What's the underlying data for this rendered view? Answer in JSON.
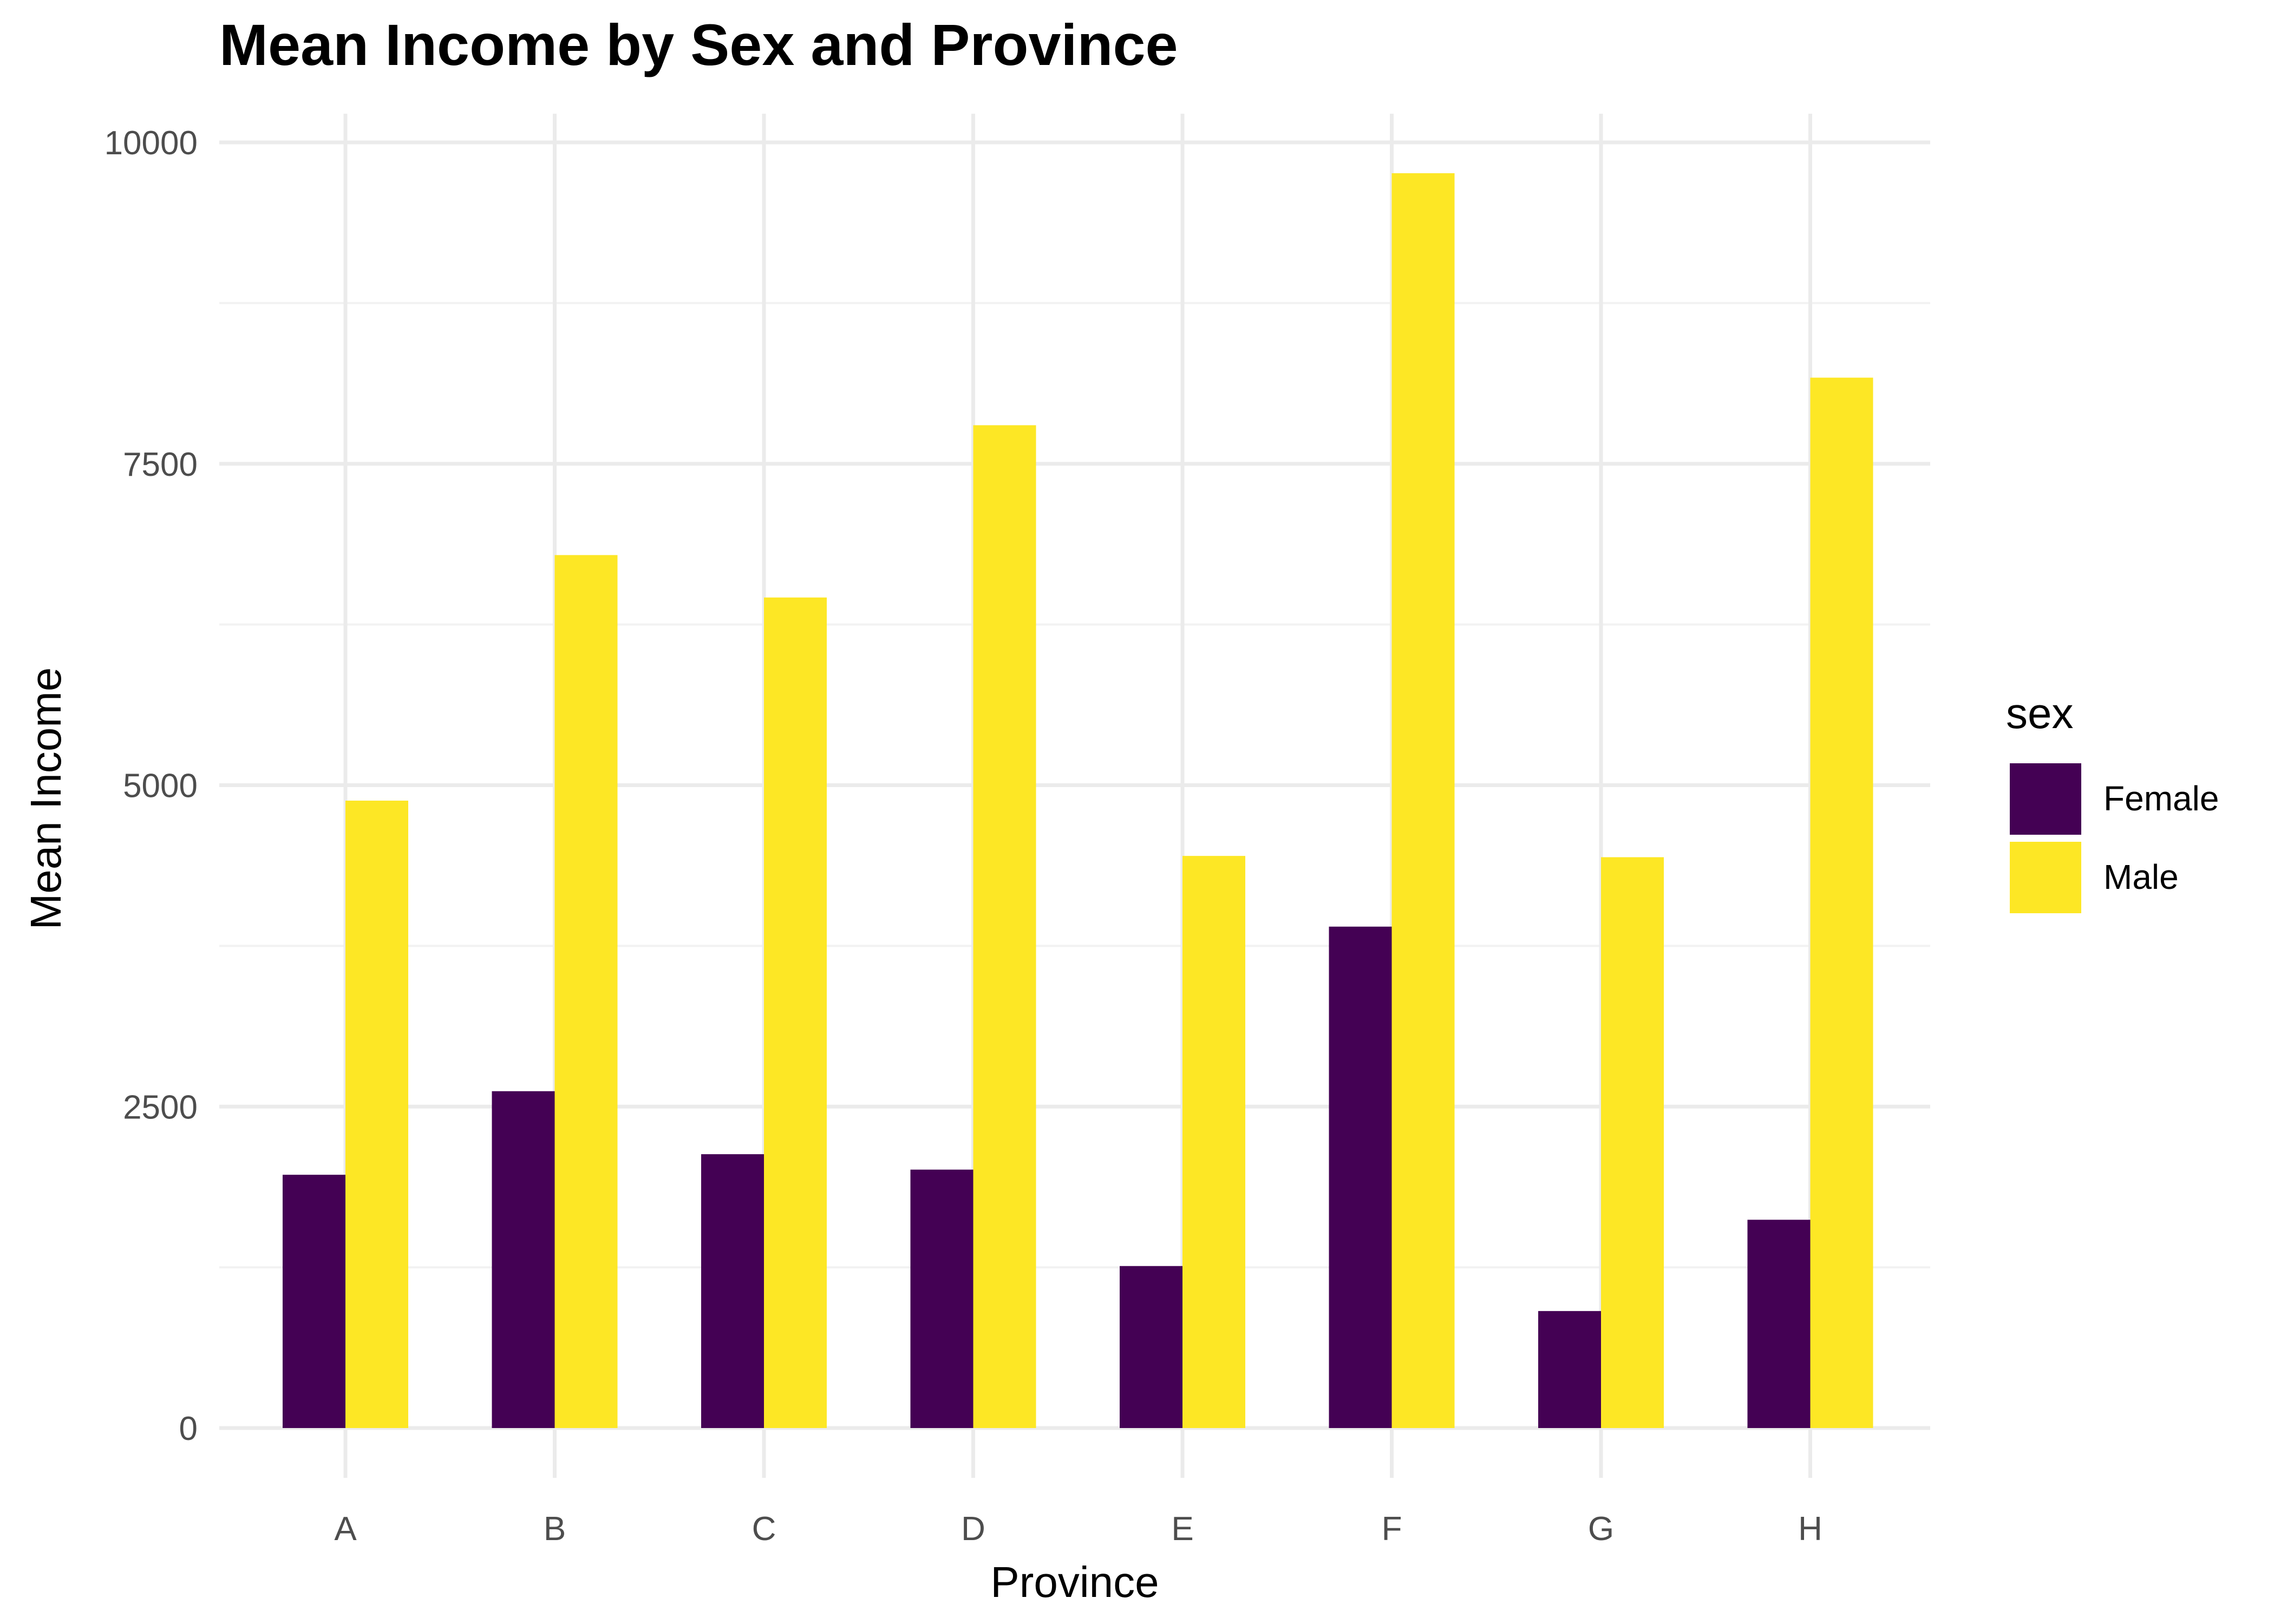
{
  "chart_data": {
    "type": "bar",
    "title": "Mean Income by Sex and Province",
    "xlabel": "Province",
    "ylabel": "Mean Income",
    "categories": [
      "A",
      "B",
      "C",
      "D",
      "E",
      "F",
      "G",
      "H"
    ],
    "series": [
      {
        "name": "Female",
        "color": "#440154",
        "values": [
          1970,
          2620,
          2130,
          2010,
          1260,
          3900,
          910,
          1620
        ]
      },
      {
        "name": "Male",
        "color": "#FDE725",
        "values": [
          4880,
          6790,
          6460,
          7800,
          4450,
          9760,
          4440,
          8170
        ]
      }
    ],
    "ylim": [
      -450,
      10000
    ],
    "yticks": [
      0,
      2500,
      5000,
      7500,
      10000
    ],
    "ytick_labels": [
      "0",
      "2500",
      "5000",
      "7500",
      "10000"
    ],
    "grid": true,
    "legend": {
      "title": "sex",
      "position": "right"
    }
  }
}
